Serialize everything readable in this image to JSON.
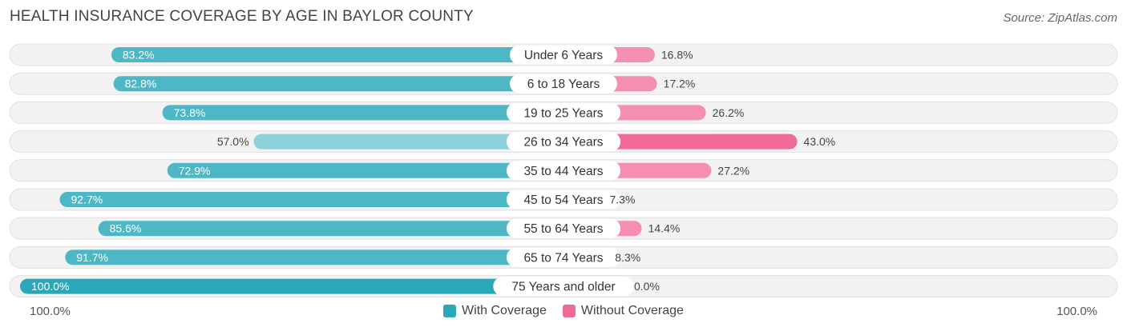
{
  "header": {
    "title": "HEALTH INSURANCE COVERAGE BY AGE IN BAYLOR COUNTY",
    "source": "Source: ZipAtlas.com"
  },
  "colors": {
    "with_coverage": "#4db7c5",
    "with_coverage_dark": "#2aa8b8",
    "with_coverage_light": "#8ed0da",
    "without_coverage": "#f58fb0",
    "without_coverage_dark": "#f06a96",
    "without_coverage_light": "#f8b7cc"
  },
  "axis": {
    "left_label": "100.0%",
    "right_label": "100.0%"
  },
  "legend": {
    "with_label": "With Coverage",
    "without_label": "Without Coverage"
  },
  "chart_data": {
    "type": "bar",
    "orientation": "horizontal-diverging",
    "title": "HEALTH INSURANCE COVERAGE BY AGE IN BAYLOR COUNTY",
    "categories": [
      "Under 6 Years",
      "6 to 18 Years",
      "19 to 25 Years",
      "26 to 34 Years",
      "35 to 44 Years",
      "45 to 54 Years",
      "55 to 64 Years",
      "65 to 74 Years",
      "75 Years and older"
    ],
    "series": [
      {
        "name": "With Coverage",
        "values": [
          83.2,
          82.8,
          73.8,
          57.0,
          72.9,
          92.7,
          85.6,
          91.7,
          100.0
        ],
        "labels": [
          "83.2%",
          "82.8%",
          "73.8%",
          "57.0%",
          "72.9%",
          "92.7%",
          "85.6%",
          "91.7%",
          "100.0%"
        ]
      },
      {
        "name": "Without Coverage",
        "values": [
          16.8,
          17.2,
          26.2,
          43.0,
          27.2,
          7.3,
          14.4,
          8.3,
          0.0
        ],
        "labels": [
          "16.8%",
          "17.2%",
          "26.2%",
          "43.0%",
          "27.2%",
          "7.3%",
          "14.4%",
          "8.3%",
          "0.0%"
        ]
      }
    ],
    "xlim": [
      -100,
      100
    ],
    "legend_position": "bottom-center"
  }
}
